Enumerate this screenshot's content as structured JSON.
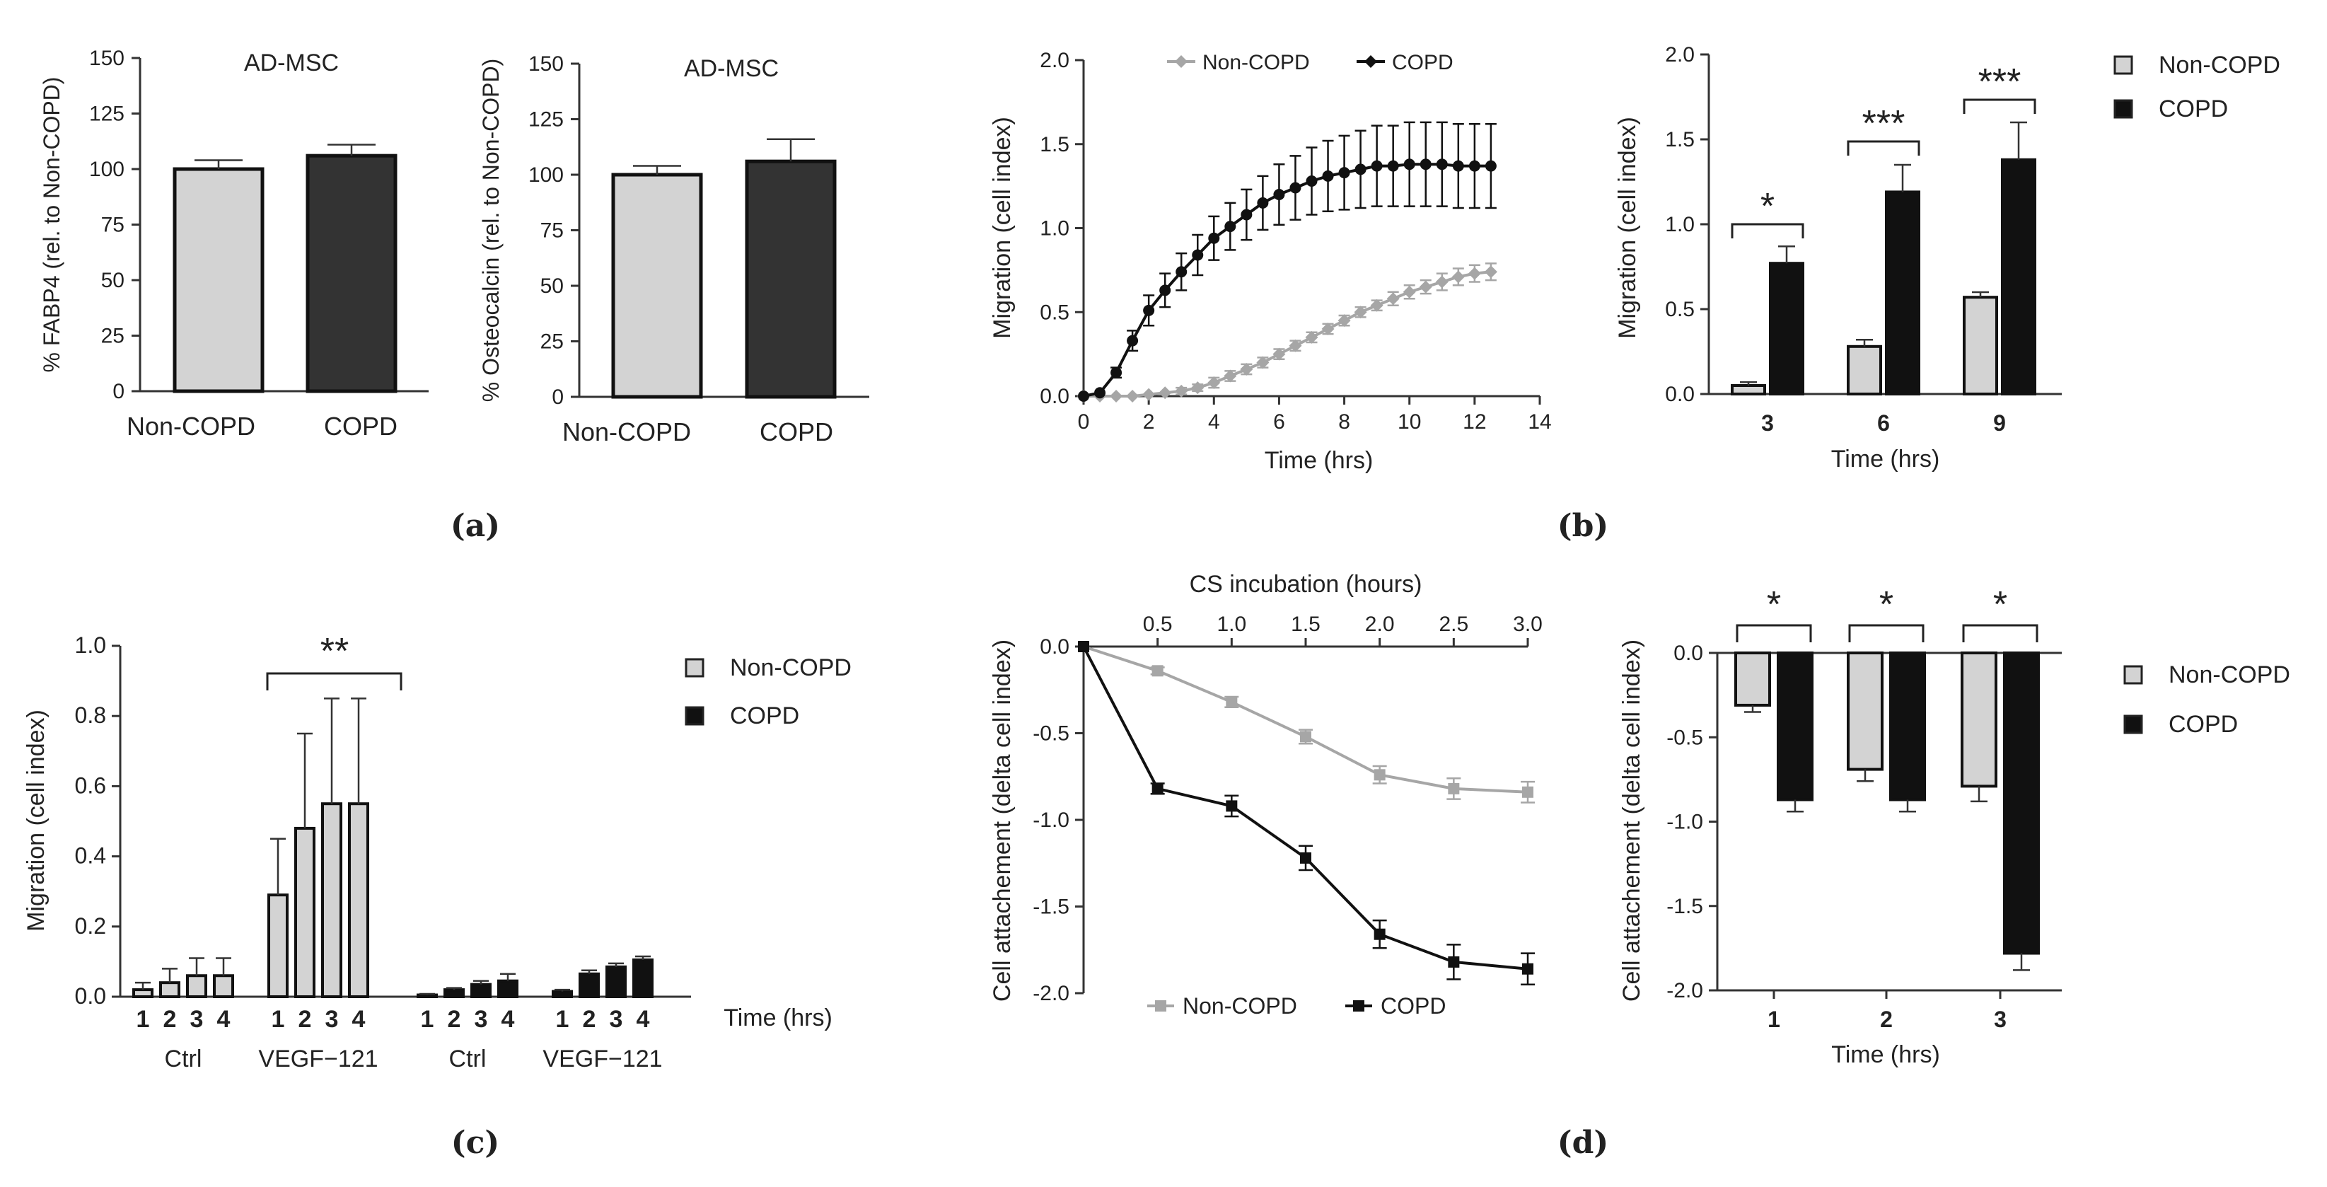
{
  "panel_labels": [
    "(a)",
    "(b)",
    "(c)",
    "(d)"
  ],
  "chart_data": [
    {
      "id": "fabp4",
      "type": "bar",
      "title": "AD-MSC",
      "ylabel": "% FABP4  (rel. to Non-COPD)",
      "xlabel": "",
      "ylim": [
        0,
        150
      ],
      "yticks": [
        0,
        25,
        50,
        75,
        100,
        125,
        150
      ],
      "categories": [
        "Non-COPD",
        "COPD"
      ],
      "values": [
        100,
        106
      ],
      "errors": [
        4,
        5
      ],
      "bar_colors": [
        "#d3d3d3",
        "#333333"
      ]
    },
    {
      "id": "osteocalcin",
      "type": "bar",
      "title": "AD-MSC",
      "ylabel": "% Osteocalcin  (rel. to Non-COPD)",
      "xlabel": "",
      "ylim": [
        0,
        150
      ],
      "yticks": [
        0,
        25,
        50,
        75,
        100,
        125,
        150
      ],
      "categories": [
        "Non-COPD",
        "COPD"
      ],
      "values": [
        100,
        106
      ],
      "errors": [
        4,
        10
      ],
      "bar_colors": [
        "#d3d3d3",
        "#333333"
      ]
    },
    {
      "id": "migration-curve",
      "type": "line",
      "xlabel": "Time (hrs)",
      "ylabel": "Migration (cell index)",
      "xlim": [
        0,
        14
      ],
      "xticks": [
        0,
        2,
        4,
        6,
        8,
        10,
        12,
        14
      ],
      "ylim": [
        0,
        2.0
      ],
      "yticks": [
        "0.0",
        "0.5",
        "1.0",
        "1.5",
        "2.0"
      ],
      "legend": [
        "Non-COPD",
        "COPD"
      ],
      "x": [
        0,
        0.5,
        1,
        1.5,
        2,
        2.5,
        3,
        3.5,
        4,
        4.5,
        5,
        5.5,
        6,
        6.5,
        7,
        7.5,
        8,
        8.5,
        9,
        9.5,
        10,
        10.5,
        11,
        11.5,
        12,
        12.5
      ],
      "series": [
        {
          "name": "Non-COPD",
          "color": "#a6a6a6",
          "marker": "diamond",
          "values": [
            0,
            0,
            0,
            0,
            0.01,
            0.02,
            0.03,
            0.05,
            0.08,
            0.12,
            0.16,
            0.2,
            0.25,
            0.3,
            0.35,
            0.4,
            0.45,
            0.5,
            0.54,
            0.58,
            0.62,
            0.65,
            0.68,
            0.71,
            0.73,
            0.74
          ],
          "errors": [
            0,
            0,
            0,
            0,
            0.01,
            0.01,
            0.02,
            0.02,
            0.03,
            0.03,
            0.03,
            0.03,
            0.03,
            0.03,
            0.03,
            0.03,
            0.03,
            0.03,
            0.03,
            0.04,
            0.04,
            0.04,
            0.05,
            0.05,
            0.05,
            0.05
          ]
        },
        {
          "name": "COPD",
          "color": "#111111",
          "marker": "circle",
          "values": [
            0,
            0.02,
            0.14,
            0.33,
            0.51,
            0.63,
            0.74,
            0.84,
            0.94,
            1.01,
            1.08,
            1.15,
            1.2,
            1.24,
            1.28,
            1.31,
            1.33,
            1.35,
            1.37,
            1.37,
            1.38,
            1.38,
            1.38,
            1.37,
            1.37,
            1.37
          ],
          "errors": [
            0,
            0.01,
            0.03,
            0.06,
            0.09,
            0.1,
            0.11,
            0.12,
            0.13,
            0.14,
            0.15,
            0.16,
            0.18,
            0.19,
            0.2,
            0.21,
            0.22,
            0.23,
            0.24,
            0.24,
            0.25,
            0.25,
            0.25,
            0.25,
            0.25,
            0.25
          ]
        }
      ]
    },
    {
      "id": "migration-bars",
      "type": "bar",
      "xlabel": "Time (hrs)",
      "ylabel": "Migration (cell index)",
      "ylim": [
        0,
        2.0
      ],
      "yticks": [
        "0.0",
        "0.5",
        "1.0",
        "1.5",
        "2.0"
      ],
      "categories": [
        "3",
        "6",
        "9"
      ],
      "legend": [
        "Non-COPD",
        "COPD"
      ],
      "series": [
        {
          "name": "Non-COPD",
          "color": "#d3d3d3",
          "values": [
            0.05,
            0.28,
            0.57
          ],
          "errors": [
            0.02,
            0.04,
            0.03
          ]
        },
        {
          "name": "COPD",
          "color": "#111111",
          "values": [
            0.77,
            1.19,
            1.38
          ],
          "errors": [
            0.1,
            0.16,
            0.22
          ]
        }
      ],
      "significance": [
        "*",
        "***",
        "***"
      ]
    },
    {
      "id": "vegf-migration",
      "type": "bar",
      "xlabel": "Time (hrs)",
      "ylabel": "Migration (cell index)",
      "ylim": [
        0,
        1.0
      ],
      "yticks": [
        "0.0",
        "0.2",
        "0.4",
        "0.6",
        "0.8",
        "1.0"
      ],
      "bar_labels": [
        "1",
        "2",
        "3",
        "4"
      ],
      "groups": [
        {
          "label": "Ctrl",
          "series": "Non-COPD",
          "values": [
            0.02,
            0.04,
            0.06,
            0.06
          ],
          "errors": [
            0.02,
            0.04,
            0.05,
            0.05
          ]
        },
        {
          "label": "VEGF−121",
          "series": "Non-COPD",
          "values": [
            0.29,
            0.48,
            0.55,
            0.55
          ],
          "errors": [
            0.16,
            0.27,
            0.3,
            0.3
          ]
        },
        {
          "label": "Ctrl",
          "series": "COPD",
          "values": [
            0.005,
            0.02,
            0.035,
            0.045
          ],
          "errors": [
            0.003,
            0.005,
            0.01,
            0.02
          ]
        },
        {
          "label": "VEGF−121",
          "series": "COPD",
          "values": [
            0.015,
            0.065,
            0.085,
            0.105
          ],
          "errors": [
            0.005,
            0.01,
            0.01,
            0.01
          ]
        }
      ],
      "legend": [
        "Non-COPD",
        "COPD"
      ],
      "significance": "**"
    },
    {
      "id": "cs-attachment-curve",
      "type": "line",
      "xlabel": "CS incubation (hours)",
      "ylabel": "Cell attachement (delta cell index)",
      "xlim": [
        0,
        3.0
      ],
      "xticks": [
        "0.5",
        "1.0",
        "1.5",
        "2.0",
        "2.5",
        "3.0"
      ],
      "ylim": [
        -2.0,
        0.0
      ],
      "yticks": [
        "0.0",
        "-0.5",
        "-1.0",
        "-1.5",
        "-2.0"
      ],
      "legend": [
        "Non-COPD",
        "COPD"
      ],
      "x": [
        0,
        0.5,
        1.0,
        1.5,
        2.0,
        2.5,
        3.0
      ],
      "series": [
        {
          "name": "Non-COPD",
          "color": "#a6a6a6",
          "marker": "square",
          "values": [
            0,
            -0.14,
            -0.32,
            -0.52,
            -0.74,
            -0.82,
            -0.84
          ],
          "errors": [
            0,
            0.02,
            0.03,
            0.04,
            0.05,
            0.06,
            0.06
          ]
        },
        {
          "name": "COPD",
          "color": "#111111",
          "marker": "square",
          "values": [
            0,
            -0.82,
            -0.92,
            -1.22,
            -1.66,
            -1.82,
            -1.86
          ],
          "errors": [
            0,
            0.03,
            0.06,
            0.07,
            0.08,
            0.1,
            0.09
          ]
        }
      ]
    },
    {
      "id": "cs-attachment-bars",
      "type": "bar",
      "xlabel": "Time (hrs)",
      "ylabel": "Cell attachement  (delta cell index)",
      "ylim": [
        -2.0,
        0.0
      ],
      "yticks": [
        "0.0",
        "-0.5",
        "-1.0",
        "-1.5",
        "-2.0"
      ],
      "categories": [
        "1",
        "2",
        "3"
      ],
      "legend": [
        "Non-COPD",
        "COPD"
      ],
      "series": [
        {
          "name": "Non-COPD",
          "color": "#d3d3d3",
          "values": [
            -0.31,
            -0.69,
            -0.79
          ],
          "errors": [
            0.04,
            0.07,
            0.09
          ]
        },
        {
          "name": "COPD",
          "color": "#111111",
          "values": [
            -0.87,
            -0.87,
            -1.78
          ],
          "errors": [
            0.07,
            0.07,
            0.1
          ]
        }
      ],
      "significance": [
        "*",
        "*",
        "*"
      ]
    }
  ]
}
